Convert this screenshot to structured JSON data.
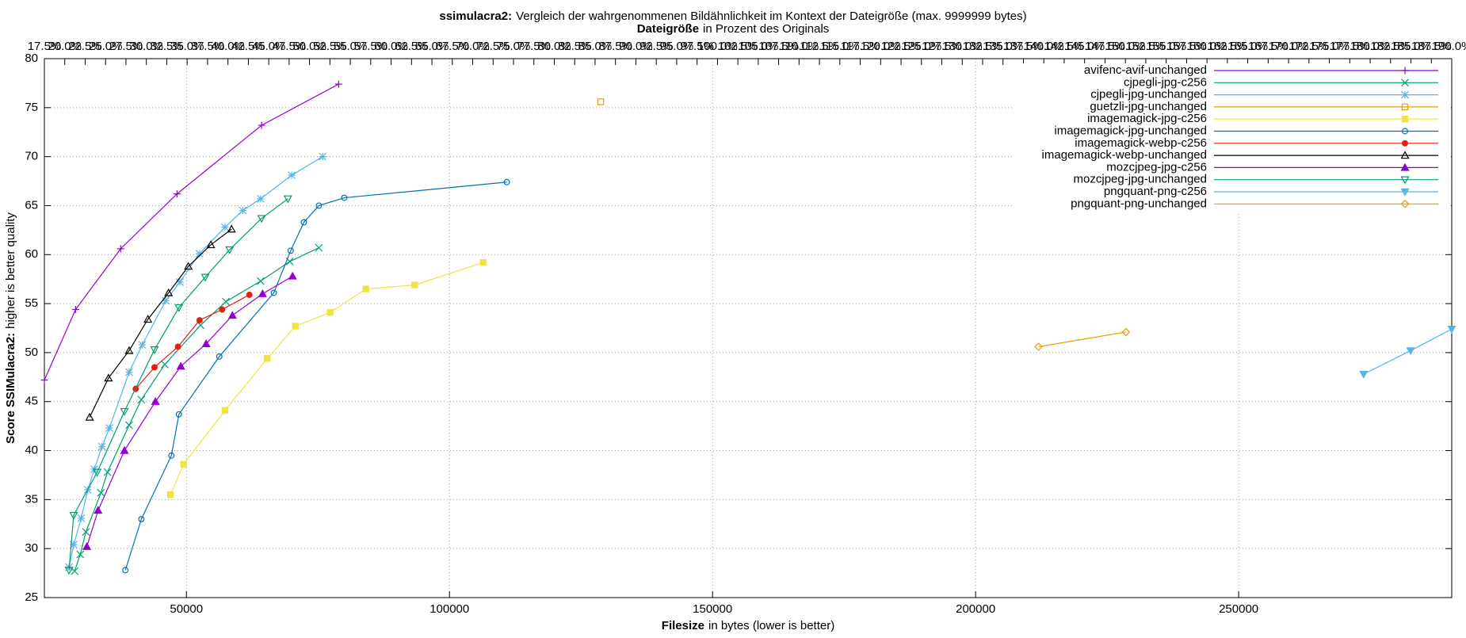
{
  "chart_data": {
    "type": "line",
    "title": [
      "ssimulacra2:",
      "Vergleich der wahrgenommenen Bildähnlichkeit im Kontext der Dateigröße (max. 9999999 bytes)"
    ],
    "subtitle": [
      "Dateigröße",
      "in Prozent des Originals"
    ],
    "xlabel": [
      "Filesize",
      "in bytes (lower is better)"
    ],
    "ylabel": [
      "Score SSIMulacra2:",
      "higher is better quality"
    ],
    "xlim": [
      23000,
      290500
    ],
    "xticks": [
      50000,
      100000,
      150000,
      200000,
      250000
    ],
    "ylim": [
      25,
      80
    ],
    "yticks": [
      25,
      30,
      35,
      40,
      45,
      50,
      55,
      60,
      65,
      70,
      75,
      80
    ],
    "x2lim": [
      17.5,
      190
    ],
    "x2ticks": [
      {
        "value": 17.5,
        "label": "17.5%"
      },
      {
        "value": 20,
        "label": "20.0%"
      },
      {
        "value": 22.5,
        "label": "22.5%"
      },
      {
        "value": 25,
        "label": "25.0%"
      },
      {
        "value": 27.5,
        "label": "27.5%"
      },
      {
        "value": 30,
        "label": "30.0%"
      },
      {
        "value": 32.5,
        "label": "32.5%"
      },
      {
        "value": 35,
        "label": "35.0%"
      },
      {
        "value": 37.5,
        "label": "37.5%"
      },
      {
        "value": 40,
        "label": "40.0%"
      },
      {
        "value": 42.5,
        "label": "42.5%"
      },
      {
        "value": 45,
        "label": "45.0%"
      },
      {
        "value": 47.5,
        "label": "47.5%"
      },
      {
        "value": 50,
        "label": "50.0%"
      },
      {
        "value": 52.5,
        "label": "52.5%"
      },
      {
        "value": 55,
        "label": "55.0%"
      },
      {
        "value": 57.5,
        "label": "57.5%"
      },
      {
        "value": 60,
        "label": "60.0%"
      },
      {
        "value": 62.5,
        "label": "62.5%"
      },
      {
        "value": 65,
        "label": "65.0%"
      },
      {
        "value": 67.5,
        "label": "67.5%"
      },
      {
        "value": 70,
        "label": "70.0%"
      },
      {
        "value": 72.5,
        "label": "72.5%"
      },
      {
        "value": 75,
        "label": "75.0%"
      },
      {
        "value": 77.5,
        "label": "77.5%"
      },
      {
        "value": 80,
        "label": "80.0%"
      },
      {
        "value": 82.5,
        "label": "82.5%"
      },
      {
        "value": 85,
        "label": "85.0%"
      },
      {
        "value": 87.5,
        "label": "87.5%"
      },
      {
        "value": 90,
        "label": "90.0%"
      },
      {
        "value": 92.5,
        "label": "92.5%"
      },
      {
        "value": 95,
        "label": "95.0%"
      },
      {
        "value": 97.5,
        "label": "97.5%"
      },
      {
        "value": 100,
        "label": "100.0%"
      },
      {
        "value": 102.5,
        "label": "102.5%"
      },
      {
        "value": 105,
        "label": "105.0%"
      },
      {
        "value": 107.5,
        "label": "107.5%"
      },
      {
        "value": 110,
        "label": "110.0%"
      },
      {
        "value": 112.5,
        "label": "112.5%"
      },
      {
        "value": 115,
        "label": "115.0%"
      },
      {
        "value": 117.5,
        "label": "117.5%"
      },
      {
        "value": 120,
        "label": "120.0%"
      },
      {
        "value": 122.5,
        "label": "122.5%"
      },
      {
        "value": 125,
        "label": "125.0%"
      },
      {
        "value": 127.5,
        "label": "127.5%"
      },
      {
        "value": 130,
        "label": "130.0%"
      },
      {
        "value": 132.5,
        "label": "132.5%"
      },
      {
        "value": 135,
        "label": "135.0%"
      },
      {
        "value": 137.5,
        "label": "137.5%"
      },
      {
        "value": 140,
        "label": "140.0%"
      },
      {
        "value": 142.5,
        "label": "142.5%"
      },
      {
        "value": 145,
        "label": "145.0%"
      },
      {
        "value": 147.5,
        "label": "147.5%"
      },
      {
        "value": 150,
        "label": "150.0%"
      },
      {
        "value": 152.5,
        "label": "152.5%"
      },
      {
        "value": 155,
        "label": "155.0%"
      },
      {
        "value": 157.5,
        "label": "157.5%"
      },
      {
        "value": 160,
        "label": "160.0%"
      },
      {
        "value": 162.5,
        "label": "162.5%"
      },
      {
        "value": 165,
        "label": "165.0%"
      },
      {
        "value": 167.5,
        "label": "167.5%"
      },
      {
        "value": 170,
        "label": "170.0%"
      },
      {
        "value": 172.5,
        "label": "172.5%"
      },
      {
        "value": 175,
        "label": "175.0%"
      },
      {
        "value": 177.5,
        "label": "177.5%"
      },
      {
        "value": 180,
        "label": "180.0%"
      },
      {
        "value": 182.5,
        "label": "182.5%"
      },
      {
        "value": 185,
        "label": "185.0%"
      },
      {
        "value": 187.5,
        "label": "187.5%"
      },
      {
        "value": 190,
        "label": "190.0%"
      }
    ],
    "grid": true,
    "legend": "upper right",
    "series": [
      {
        "name": "avifenc-avif-unchanged",
        "color": "#9400d3",
        "marker": "plus",
        "x": [
          23000,
          28929,
          37500,
          48214,
          64286,
          78929
        ],
        "values": [
          47.2,
          54.4,
          60.6,
          66.2,
          73.2,
          77.4
        ]
      },
      {
        "name": "cjpegli-jpg-c256",
        "color": "#009e73",
        "marker": "cross",
        "x": [
          28750,
          29821,
          30893,
          33750,
          35000,
          39107,
          41429,
          45893,
          52679,
          57500,
          64107,
          69643,
          75179
        ],
        "values": [
          27.7,
          29.4,
          31.7,
          35.7,
          37.8,
          42.6,
          45.2,
          48.8,
          52.8,
          55.2,
          57.3,
          59.3,
          60.7
        ]
      },
      {
        "name": "cjpegli-jpg-unchanged",
        "color": "#56b4e9",
        "marker": "star",
        "x": [
          27679,
          28571,
          30000,
          31250,
          32500,
          33929,
          35357,
          39107,
          41607,
          46071,
          48750,
          52500,
          57321,
          60714,
          64107,
          70000,
          75893
        ],
        "values": [
          28.1,
          30.4,
          33.1,
          36.0,
          38.1,
          40.4,
          42.3,
          48.0,
          50.8,
          55.3,
          57.2,
          60.1,
          62.8,
          64.5,
          65.7,
          68.1,
          70.0
        ]
      },
      {
        "name": "guetzli-jpg-unchanged",
        "color": "#e69f00",
        "marker": "square",
        "x": [
          128750
        ],
        "values": [
          75.6
        ]
      },
      {
        "name": "imagemagick-jpg-c256",
        "color": "#f0e442",
        "marker": "square-filled",
        "x": [
          46964,
          49464,
          57321,
          65357,
          70714,
          77321,
          84107,
          93393,
          106429
        ],
        "values": [
          35.5,
          38.6,
          44.1,
          49.4,
          52.7,
          54.1,
          56.5,
          56.9,
          59.2
        ]
      },
      {
        "name": "imagemagick-jpg-unchanged",
        "color": "#0072b2",
        "marker": "circle",
        "x": [
          38393,
          41429,
          47143,
          48571,
          56250,
          66607,
          69821,
          72321,
          75179,
          80000,
          110893
        ],
        "values": [
          27.8,
          33.0,
          39.5,
          43.7,
          49.6,
          56.1,
          60.4,
          63.3,
          65.0,
          65.8,
          67.4
        ]
      },
      {
        "name": "imagemagick-webp-c256",
        "color": "#e51e10",
        "marker": "circle-filled",
        "x": [
          40357,
          43929,
          48393,
          52500,
          56786,
          61964
        ],
        "values": [
          46.3,
          48.5,
          50.6,
          53.3,
          54.4,
          55.9
        ]
      },
      {
        "name": "imagemagick-webp-unchanged",
        "color": "#000000",
        "marker": "triangle",
        "x": [
          31607,
          35179,
          39107,
          42679,
          46607,
          50357,
          54643,
          58571
        ],
        "values": [
          43.4,
          47.4,
          50.2,
          53.4,
          56.1,
          58.8,
          61.0,
          62.6
        ]
      },
      {
        "name": "mozcjpeg-jpg-c256",
        "color": "#9400d3",
        "marker": "triangle-filled",
        "x": [
          31071,
          33214,
          38214,
          44107,
          48929,
          53750,
          58750,
          64464,
          70179
        ],
        "values": [
          30.2,
          33.9,
          40.0,
          45.0,
          48.6,
          50.9,
          53.8,
          56.0,
          57.8
        ]
      },
      {
        "name": "mozcjpeg-jpg-unchanged",
        "color": "#009e73",
        "marker": "triangle-down",
        "x": [
          27679,
          28571,
          33036,
          38214,
          43929,
          48571,
          53571,
          58214,
          64286,
          69286
        ],
        "values": [
          27.8,
          33.4,
          37.8,
          44.0,
          50.3,
          54.6,
          57.7,
          60.5,
          63.7,
          65.7
        ]
      },
      {
        "name": "pngquant-png-c256",
        "color": "#56b4e9",
        "marker": "triangle-down-filled",
        "x": [
          273750,
          282679,
          290500
        ],
        "values": [
          47.8,
          50.2,
          52.4
        ]
      },
      {
        "name": "pngquant-png-unchanged",
        "color": "#e69f00",
        "marker": "diamond",
        "x": [
          211964,
          228571
        ],
        "values": [
          50.6,
          52.1
        ]
      }
    ]
  }
}
